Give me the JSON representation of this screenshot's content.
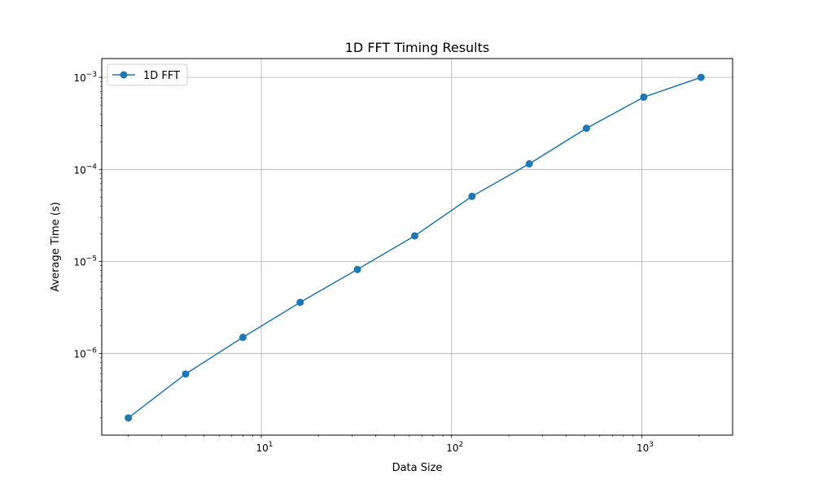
{
  "chart_data": {
    "type": "line",
    "title": "1D FFT Timing Results",
    "xlabel": "Data Size",
    "ylabel": "Average Time (s)",
    "xscale": "log",
    "yscale": "log",
    "xlim": [
      1.45,
      3000
    ],
    "ylim": [
      1.3e-07,
      0.0016
    ],
    "grid": true,
    "legend_position": "top-left",
    "x_ticks": [
      {
        "value": 10,
        "base": "10",
        "exp": "1"
      },
      {
        "value": 100,
        "base": "10",
        "exp": "2"
      },
      {
        "value": 1000,
        "base": "10",
        "exp": "3"
      }
    ],
    "y_ticks": [
      {
        "value": 1e-06,
        "base": "10",
        "exp": "−6"
      },
      {
        "value": 1e-05,
        "base": "10",
        "exp": "−5"
      },
      {
        "value": 0.0001,
        "base": "10",
        "exp": "−4"
      },
      {
        "value": 0.001,
        "base": "10",
        "exp": "−3"
      }
    ],
    "series": [
      {
        "name": "1D FFT",
        "color": "#1f77b4",
        "marker": "circle",
        "x": [
          2,
          4,
          8,
          16,
          32,
          64,
          128,
          256,
          512,
          1024,
          2048
        ],
        "y": [
          2e-07,
          6e-07,
          1.5e-06,
          3.6e-06,
          8.2e-06,
          1.9e-05,
          5.1e-05,
          0.000115,
          0.00028,
          0.00061,
          0.001
        ]
      }
    ]
  }
}
